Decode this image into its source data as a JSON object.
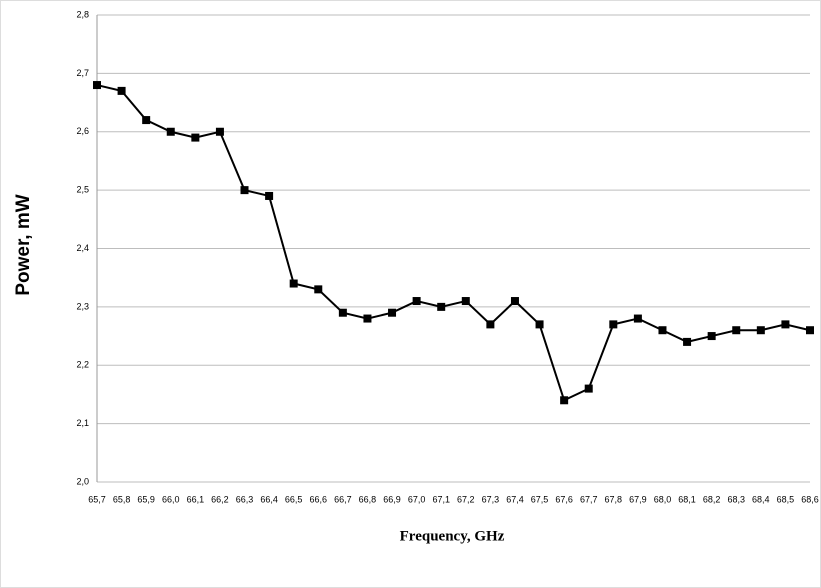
{
  "chart_data": {
    "type": "line",
    "x_label": "Frequency, GHz",
    "y_label": "Power, mW",
    "categories": [
      "65,7",
      "65,8",
      "65,9",
      "66,0",
      "66,1",
      "66,2",
      "66,3",
      "66,4",
      "66,5",
      "66,6",
      "66,7",
      "66,8",
      "66,9",
      "67,0",
      "67,1",
      "67,2",
      "67,3",
      "67,4",
      "67,5",
      "67,6",
      "67,7",
      "67,8",
      "67,9",
      "68,0",
      "68,1",
      "68,2",
      "68,3",
      "68,4",
      "68,5",
      "68,6"
    ],
    "series": [
      {
        "color": "#000000",
        "values": [
          2.68,
          2.67,
          2.62,
          2.6,
          2.59,
          2.6,
          2.5,
          2.49,
          2.34,
          2.33,
          2.29,
          2.28,
          2.29,
          2.31,
          2.3,
          2.31,
          2.27,
          2.31,
          2.27,
          2.14,
          2.16,
          2.27,
          2.28,
          2.26,
          2.24,
          2.25,
          2.26,
          2.26,
          2.27,
          2.26
        ]
      }
    ],
    "ylim": [
      2.0,
      2.8
    ],
    "yticks": [
      {
        "value": 2.0,
        "label": "2,0"
      },
      {
        "value": 2.1,
        "label": "2,1"
      },
      {
        "value": 2.2,
        "label": "2,2"
      },
      {
        "value": 2.3,
        "label": "2,3"
      },
      {
        "value": 2.4,
        "label": "2,4"
      },
      {
        "value": 2.5,
        "label": "2,5"
      },
      {
        "value": 2.6,
        "label": "2,6"
      },
      {
        "value": 2.7,
        "label": "2,7"
      },
      {
        "value": 2.8,
        "label": "2,8"
      }
    ],
    "grid": true
  }
}
